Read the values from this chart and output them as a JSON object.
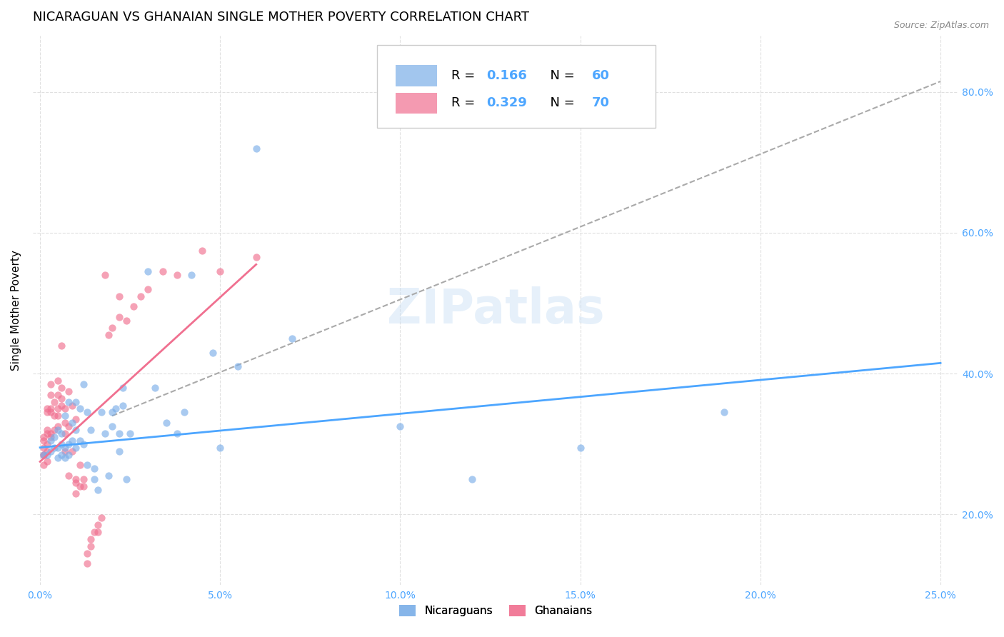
{
  "title": "NICARAGUAN VS GHANAIAN SINGLE MOTHER POVERTY CORRELATION CHART",
  "source": "Source: ZipAtlas.com",
  "xlabel_ticks": [
    "0.0%",
    "5.0%",
    "10.0%",
    "15.0%",
    "20.0%",
    "25.0%"
  ],
  "ylabel_ticks": [
    "20.0%",
    "40.0%",
    "60.0%",
    "80.0%"
  ],
  "xlim": [
    -0.002,
    0.255
  ],
  "ylim": [
    0.1,
    0.88
  ],
  "nic_color": "#7baee8",
  "gha_color": "#f07090",
  "nic_scatter": [
    [
      0.001,
      0.285
    ],
    [
      0.002,
      0.285
    ],
    [
      0.003,
      0.29
    ],
    [
      0.003,
      0.305
    ],
    [
      0.004,
      0.31
    ],
    [
      0.004,
      0.295
    ],
    [
      0.005,
      0.32
    ],
    [
      0.005,
      0.295
    ],
    [
      0.005,
      0.28
    ],
    [
      0.006,
      0.3
    ],
    [
      0.006,
      0.315
    ],
    [
      0.006,
      0.285
    ],
    [
      0.007,
      0.34
    ],
    [
      0.007,
      0.295
    ],
    [
      0.007,
      0.28
    ],
    [
      0.008,
      0.36
    ],
    [
      0.008,
      0.3
    ],
    [
      0.008,
      0.285
    ],
    [
      0.009,
      0.33
    ],
    [
      0.009,
      0.305
    ],
    [
      0.01,
      0.36
    ],
    [
      0.01,
      0.32
    ],
    [
      0.01,
      0.295
    ],
    [
      0.011,
      0.35
    ],
    [
      0.011,
      0.305
    ],
    [
      0.012,
      0.385
    ],
    [
      0.012,
      0.3
    ],
    [
      0.013,
      0.345
    ],
    [
      0.013,
      0.27
    ],
    [
      0.014,
      0.32
    ],
    [
      0.015,
      0.265
    ],
    [
      0.015,
      0.25
    ],
    [
      0.016,
      0.235
    ],
    [
      0.017,
      0.345
    ],
    [
      0.018,
      0.315
    ],
    [
      0.019,
      0.255
    ],
    [
      0.02,
      0.345
    ],
    [
      0.02,
      0.325
    ],
    [
      0.021,
      0.35
    ],
    [
      0.022,
      0.315
    ],
    [
      0.022,
      0.29
    ],
    [
      0.023,
      0.355
    ],
    [
      0.023,
      0.38
    ],
    [
      0.024,
      0.25
    ],
    [
      0.025,
      0.315
    ],
    [
      0.03,
      0.545
    ],
    [
      0.032,
      0.38
    ],
    [
      0.035,
      0.33
    ],
    [
      0.038,
      0.315
    ],
    [
      0.04,
      0.345
    ],
    [
      0.042,
      0.54
    ],
    [
      0.048,
      0.43
    ],
    [
      0.05,
      0.295
    ],
    [
      0.055,
      0.41
    ],
    [
      0.06,
      0.72
    ],
    [
      0.07,
      0.45
    ],
    [
      0.1,
      0.325
    ],
    [
      0.12,
      0.25
    ],
    [
      0.15,
      0.295
    ],
    [
      0.19,
      0.345
    ]
  ],
  "gha_scatter": [
    [
      0.001,
      0.285
    ],
    [
      0.001,
      0.27
    ],
    [
      0.001,
      0.295
    ],
    [
      0.001,
      0.305
    ],
    [
      0.001,
      0.31
    ],
    [
      0.001,
      0.285
    ],
    [
      0.002,
      0.345
    ],
    [
      0.002,
      0.32
    ],
    [
      0.002,
      0.3
    ],
    [
      0.002,
      0.275
    ],
    [
      0.002,
      0.35
    ],
    [
      0.002,
      0.315
    ],
    [
      0.002,
      0.29
    ],
    [
      0.003,
      0.37
    ],
    [
      0.003,
      0.345
    ],
    [
      0.003,
      0.31
    ],
    [
      0.003,
      0.385
    ],
    [
      0.003,
      0.35
    ],
    [
      0.003,
      0.315
    ],
    [
      0.004,
      0.36
    ],
    [
      0.004,
      0.34
    ],
    [
      0.004,
      0.32
    ],
    [
      0.005,
      0.39
    ],
    [
      0.005,
      0.35
    ],
    [
      0.005,
      0.325
    ],
    [
      0.005,
      0.37
    ],
    [
      0.005,
      0.34
    ],
    [
      0.006,
      0.44
    ],
    [
      0.006,
      0.355
    ],
    [
      0.006,
      0.38
    ],
    [
      0.006,
      0.365
    ],
    [
      0.007,
      0.33
    ],
    [
      0.007,
      0.315
    ],
    [
      0.007,
      0.29
    ],
    [
      0.007,
      0.35
    ],
    [
      0.008,
      0.255
    ],
    [
      0.008,
      0.375
    ],
    [
      0.008,
      0.325
    ],
    [
      0.009,
      0.355
    ],
    [
      0.009,
      0.29
    ],
    [
      0.01,
      0.335
    ],
    [
      0.01,
      0.25
    ],
    [
      0.01,
      0.245
    ],
    [
      0.01,
      0.23
    ],
    [
      0.011,
      0.27
    ],
    [
      0.011,
      0.24
    ],
    [
      0.012,
      0.25
    ],
    [
      0.012,
      0.24
    ],
    [
      0.013,
      0.13
    ],
    [
      0.013,
      0.145
    ],
    [
      0.014,
      0.155
    ],
    [
      0.014,
      0.165
    ],
    [
      0.015,
      0.175
    ],
    [
      0.016,
      0.185
    ],
    [
      0.016,
      0.175
    ],
    [
      0.017,
      0.195
    ],
    [
      0.018,
      0.54
    ],
    [
      0.019,
      0.455
    ],
    [
      0.02,
      0.465
    ],
    [
      0.022,
      0.51
    ],
    [
      0.022,
      0.48
    ],
    [
      0.024,
      0.475
    ],
    [
      0.026,
      0.495
    ],
    [
      0.028,
      0.51
    ],
    [
      0.03,
      0.52
    ],
    [
      0.034,
      0.545
    ],
    [
      0.038,
      0.54
    ],
    [
      0.045,
      0.575
    ],
    [
      0.05,
      0.545
    ],
    [
      0.06,
      0.565
    ]
  ],
  "watermark": "ZIPatlas",
  "background_color": "#ffffff",
  "grid_color": "#dddddd",
  "tick_color": "#4da6ff",
  "title_fontsize": 13,
  "axis_label_fontsize": 11,
  "tick_fontsize": 10,
  "scatter_alpha": 0.65,
  "scatter_size": 55,
  "nic_line_color": "#4da6ff",
  "gha_line_color": "#f07090",
  "dashed_line_color": "#aaaaaa",
  "nic_trend": [
    0.0,
    0.25,
    0.295,
    0.415
  ],
  "gha_trend": [
    0.0,
    0.06,
    0.275,
    0.555
  ],
  "dash_trend": [
    0.02,
    0.25,
    0.34,
    0.815
  ]
}
